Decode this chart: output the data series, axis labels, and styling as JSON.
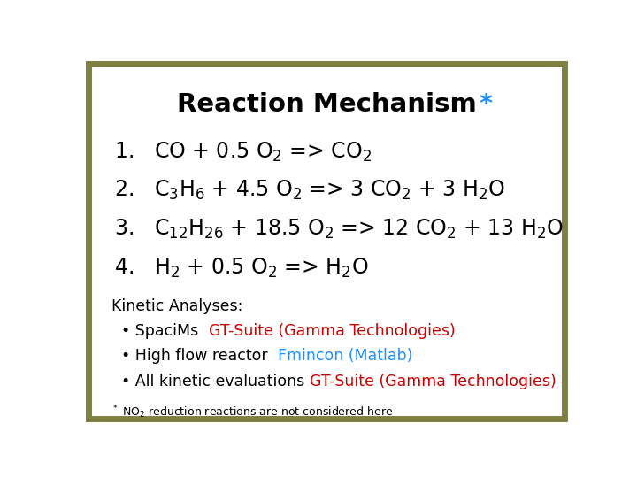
{
  "title": "Reaction Mechanism",
  "title_star": "*",
  "title_color": "#000000",
  "title_star_color": "#1E90FF",
  "background_color": "#FFFFFF",
  "border_color": "#808040",
  "border_linewidth": 5,
  "reactions": [
    [
      "1.   CO + 0.5 O",
      "2",
      " => CO",
      "2",
      ""
    ],
    [
      "2.   C",
      "3",
      "H",
      "6",
      " + 4.5 O",
      "2",
      " => 3 CO",
      "2",
      " + 3 H",
      "2",
      "O"
    ],
    [
      "3.   C",
      "12",
      "H",
      "26",
      " + 18.5 O",
      "2",
      " => 12 CO",
      "2",
      " + 13 H",
      "2",
      "O"
    ],
    [
      "4.   H",
      "2",
      " + 0.5 O",
      "2",
      " => H",
      "2",
      "O"
    ]
  ],
  "reaction_fontsize": 17,
  "reaction_color": "#000000",
  "kinetic_title": "Kinetic Analyses:",
  "kinetic_title_color": "#000000",
  "kinetic_title_fontsize": 12.5,
  "bullet_lines": [
    {
      "parts": [
        {
          "text": "  • SpaciMs  ",
          "color": "#000000"
        },
        {
          "text": "GT-Suite (Gamma Technologies)",
          "color": "#CC0000"
        }
      ]
    },
    {
      "parts": [
        {
          "text": "  • High flow reactor  ",
          "color": "#000000"
        },
        {
          "text": "Fmincon (Matlab)",
          "color": "#1E90FF"
        }
      ]
    },
    {
      "parts": [
        {
          "text": "  • All kinetic evaluations ",
          "color": "#000000"
        },
        {
          "text": "GT-Suite (Gamma Technologies)",
          "color": "#CC0000"
        }
      ]
    }
  ],
  "bullet_fontsize": 12.5,
  "footnote_fontsize": 9
}
